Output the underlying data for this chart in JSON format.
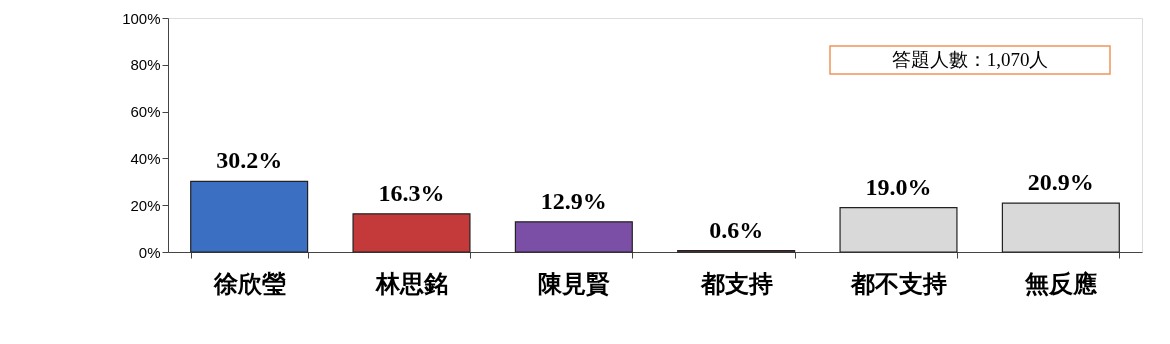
{
  "chart_data": {
    "type": "bar",
    "categories": [
      "徐欣瑩",
      "林思銘",
      "陳見賢",
      "都支持",
      "都不支持",
      "無反應"
    ],
    "values": [
      30.2,
      16.3,
      12.9,
      0.6,
      19.0,
      20.9
    ],
    "colors": [
      "#3b6fc1",
      "#c43a3a",
      "#7c4fa6",
      "#c0504d",
      "#d9d9d9",
      "#d9d9d9"
    ],
    "value_labels": [
      "30.2%",
      "16.3%",
      "12.9%",
      "0.6%",
      "19.0%",
      "20.9%"
    ],
    "ylim": [
      0,
      100
    ],
    "yticks": [
      {
        "value": 0,
        "label": "0%"
      },
      {
        "value": 20,
        "label": "20%"
      },
      {
        "value": 40,
        "label": "40%"
      },
      {
        "value": 60,
        "label": "60%"
      },
      {
        "value": 80,
        "label": "80%"
      },
      {
        "value": 100,
        "label": "100%"
      }
    ],
    "annotations": [
      "答題人數：1,070人"
    ],
    "grid": false
  }
}
